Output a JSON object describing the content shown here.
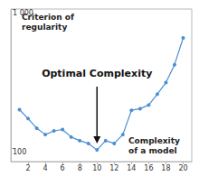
{
  "chart_data": {
    "type": "line",
    "x": [
      1,
      2,
      3,
      4,
      5,
      6,
      7,
      8,
      9,
      10,
      11,
      12,
      13,
      14,
      15,
      16,
      17,
      18,
      19,
      20
    ],
    "values": [
      189,
      163,
      139,
      125,
      133,
      136,
      120,
      113,
      108,
      97,
      113,
      108,
      125,
      187,
      192,
      204,
      244,
      296,
      398,
      620
    ],
    "xlim": [
      0,
      21
    ],
    "xticks": [
      2,
      4,
      6,
      8,
      10,
      12,
      14,
      16,
      18,
      20
    ],
    "ylim": [
      80,
      1000
    ],
    "yticks": [
      100,
      {
        "value": 1000,
        "label": "1 000"
      }
    ],
    "log": "y",
    "grid": false,
    "color": "#4a8fd4",
    "marker": "circle",
    "x_label": "Complexity of a model",
    "y_label": "Criterion of regularity",
    "annotations": [
      {
        "text": "Optimal Complexity",
        "x": 10
      }
    ]
  }
}
